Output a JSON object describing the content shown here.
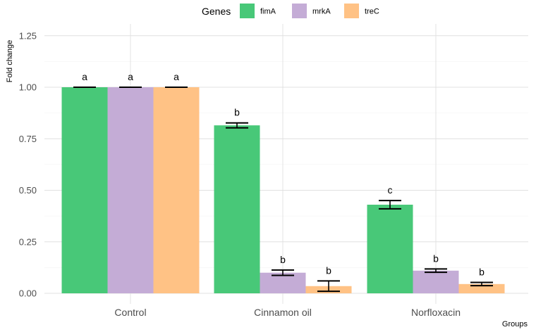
{
  "chart_data": {
    "type": "bar",
    "title": "",
    "xlabel": "Groups",
    "ylabel": "Fold change",
    "categories": [
      "Control",
      "Cinnamon oil",
      "Norfloxacin"
    ],
    "yticks": [
      "0.00",
      "0.25",
      "0.50",
      "0.75",
      "1.00",
      "1.25"
    ],
    "ylim": [
      0,
      1.25
    ],
    "grid": true,
    "legend": {
      "title": "Genes",
      "position": "top"
    },
    "series": [
      {
        "name": "fimA",
        "color": "#48c878",
        "values": [
          1.0,
          0.815,
          0.43
        ],
        "errors": [
          0.0,
          0.012,
          0.02
        ],
        "labels": [
          "a",
          "b",
          "c"
        ]
      },
      {
        "name": "mrkA",
        "color": "#c4acd6",
        "values": [
          1.0,
          0.1,
          0.11
        ],
        "errors": [
          0.0,
          0.013,
          0.008
        ],
        "labels": [
          "a",
          "b",
          "b"
        ]
      },
      {
        "name": "treC",
        "color": "#ffc285",
        "values": [
          1.0,
          0.035,
          0.045
        ],
        "errors": [
          0.0,
          0.025,
          0.008
        ],
        "labels": [
          "a",
          "b",
          "b"
        ]
      }
    ]
  }
}
